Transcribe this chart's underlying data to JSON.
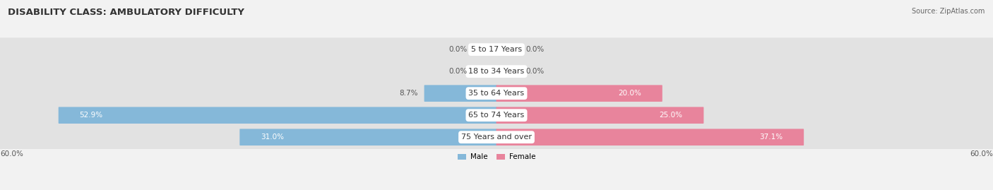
{
  "title": "DISABILITY CLASS: AMBULATORY DIFFICULTY",
  "source": "Source: ZipAtlas.com",
  "categories": [
    "5 to 17 Years",
    "18 to 34 Years",
    "35 to 64 Years",
    "65 to 74 Years",
    "75 Years and over"
  ],
  "male_values": [
    0.0,
    0.0,
    8.7,
    52.9,
    31.0
  ],
  "female_values": [
    0.0,
    0.0,
    20.0,
    25.0,
    37.1
  ],
  "max_val": 60.0,
  "male_color": "#85b8d9",
  "female_color": "#e8849c",
  "male_label": "Male",
  "female_label": "Female",
  "bg_color": "#f2f2f2",
  "row_bg_color": "#e2e2e2",
  "title_fontsize": 9.5,
  "label_fontsize": 7.5,
  "source_fontsize": 7,
  "category_fontsize": 8,
  "axis_label_fontsize": 7.5
}
